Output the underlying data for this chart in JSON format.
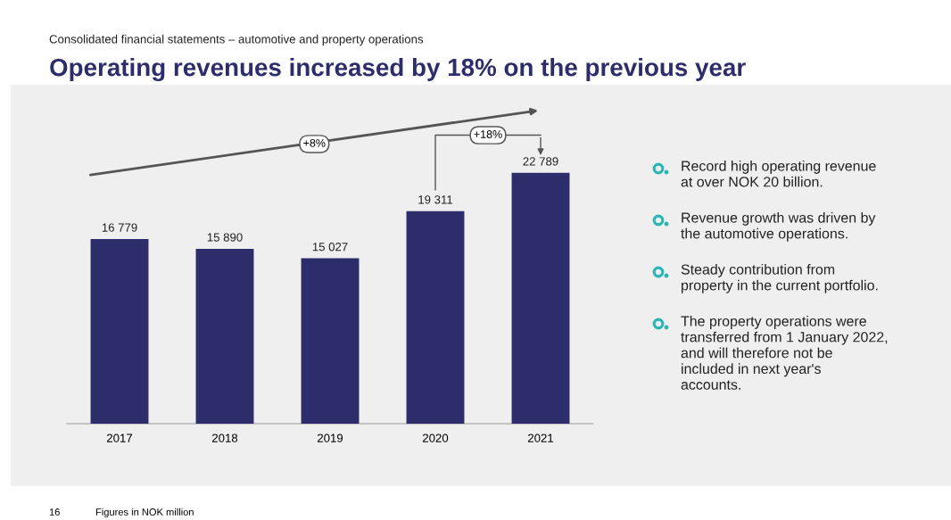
{
  "chart_data": {
    "type": "bar",
    "subtitle": "Consolidated financial statements – automotive and property operations",
    "title": "Operating revenues increased by 18% on the previous year",
    "categories": [
      "2017",
      "2018",
      "2019",
      "2020",
      "2021"
    ],
    "values": [
      16779,
      15890,
      15027,
      19311,
      22789
    ],
    "value_labels": [
      "16 779",
      "15 890",
      "15 027",
      "19 311",
      "22 789"
    ],
    "color": "#2e2d6b",
    "grid": false,
    "legend": false,
    "annotations": [
      "+8%",
      "+18%",
      "Record high operating revenue\nat over NOK 20 billion.",
      "Revenue growth was driven by\nthe automotive operations.",
      "Steady contribution from\nproperty in the current portfolio.",
      "The property operations were\ntransferred from 1 January 2022,\nand will therefore not be\nincluded in next year's\naccounts.",
      "16",
      "Figures in NOK million"
    ]
  }
}
